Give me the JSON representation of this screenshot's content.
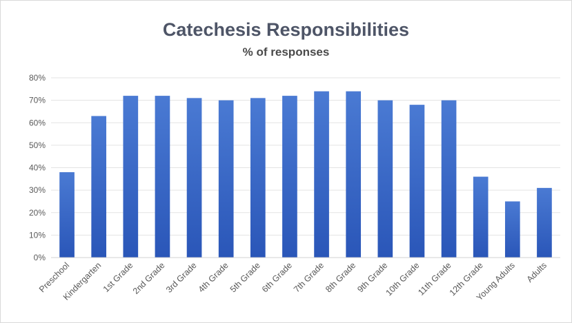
{
  "chart_data": {
    "type": "bar",
    "title": "Catechesis Responsibilities",
    "subtitle": "% of responses",
    "xlabel": "",
    "ylabel": "",
    "categories": [
      "Preschool",
      "Kindergarten",
      "1st Grade",
      "2nd Grade",
      "3rd Grade",
      "4th Grade",
      "5th Grade",
      "6th Grade",
      "7th Grade",
      "8th Grade",
      "9th Grade",
      "10th Grade",
      "11th Grade",
      "12th Grade",
      "Young Adults",
      "Adults"
    ],
    "values": [
      38,
      63,
      72,
      72,
      71,
      70,
      71,
      72,
      74,
      74,
      70,
      68,
      70,
      36,
      25,
      31
    ],
    "y_ticks": [
      "0%",
      "10%",
      "20%",
      "30%",
      "40%",
      "50%",
      "60%",
      "70%",
      "80%"
    ],
    "ylim": [
      0,
      80
    ],
    "grid": true,
    "legend": "none",
    "colors": {
      "bar_top": "#4a7ad3",
      "bar_bottom": "#2a56b8",
      "grid": "#e3e3e3"
    }
  }
}
